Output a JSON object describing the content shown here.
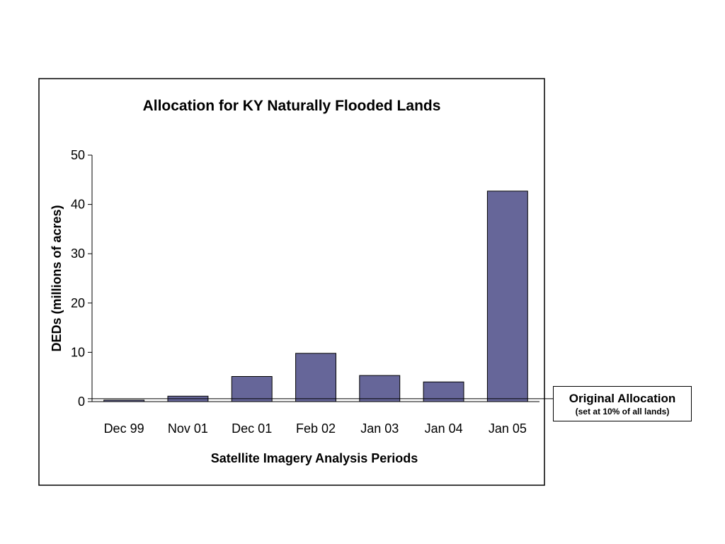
{
  "chart_data": {
    "type": "bar",
    "title": "Allocation for KY Naturally Flooded Lands",
    "xlabel": "Satellite Imagery Analysis Periods",
    "ylabel": "DEDs (millions of acres)",
    "categories": [
      "Dec 99",
      "Nov 01",
      "Dec 01",
      "Feb 02",
      "Jan 03",
      "Jan 04",
      "Jan 05"
    ],
    "values": [
      0.3,
      1.1,
      5.1,
      9.8,
      5.3,
      4.0,
      42.7
    ],
    "ylim": [
      0,
      50
    ],
    "yticks": [
      0,
      10,
      20,
      30,
      40,
      50
    ],
    "reference_line": {
      "value": 0.6
    },
    "grid": false,
    "legend": "none",
    "bar_color": "#666699"
  },
  "annotation": {
    "title": "Original Allocation",
    "subtitle": "(set at 10% of all lands)"
  }
}
